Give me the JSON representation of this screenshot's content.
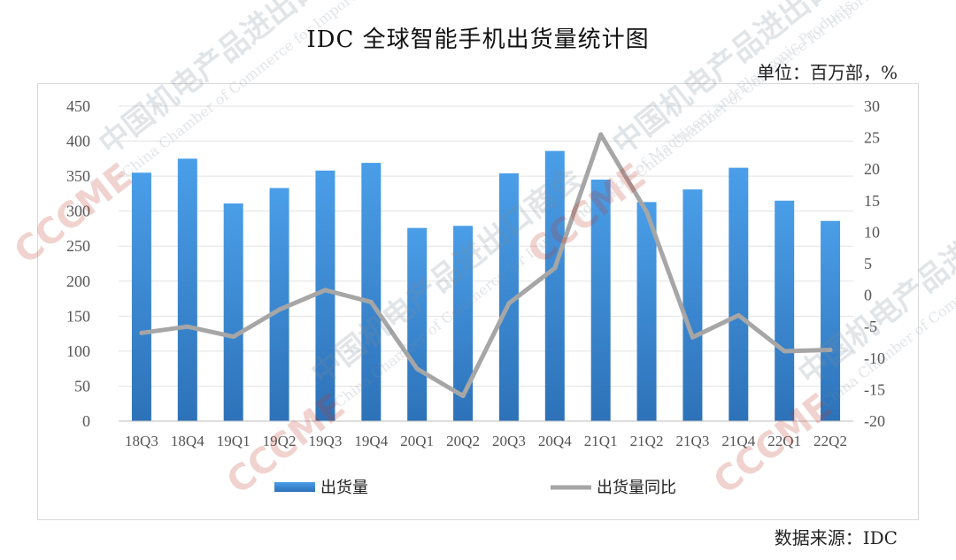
{
  "title": "IDC 全球智能手机出货量统计图",
  "unit": "单位：百万部，%",
  "source": "数据来源：IDC",
  "chart_data": {
    "type": "bar",
    "categories": [
      "18Q3",
      "18Q4",
      "19Q1",
      "19Q2",
      "19Q3",
      "19Q4",
      "20Q1",
      "20Q2",
      "20Q3",
      "20Q4",
      "21Q1",
      "21Q2",
      "21Q3",
      "21Q4",
      "22Q1",
      "22Q2"
    ],
    "series": [
      {
        "name": "出货量",
        "type": "bar",
        "axis": "left",
        "color": "#3f8ad6",
        "values": [
          355,
          375,
          311,
          333,
          358,
          369,
          276,
          279,
          354,
          386,
          345,
          313,
          331,
          362,
          315,
          286
        ]
      },
      {
        "name": "出货量同比",
        "type": "line",
        "axis": "right",
        "color": "#a6a6a6",
        "values": [
          -6,
          -5,
          -6.6,
          -2.3,
          0.8,
          -1.1,
          -11.7,
          -16,
          -1.3,
          4.3,
          25.5,
          13.2,
          -6.7,
          -3.2,
          -8.9,
          -8.7
        ]
      }
    ],
    "y_left": {
      "min": 0,
      "max": 450,
      "step": 50,
      "ticks": [
        "0",
        "50",
        "100",
        "150",
        "200",
        "250",
        "300",
        "350",
        "400",
        "450"
      ]
    },
    "y_right": {
      "min": -20,
      "max": 30,
      "step": 5,
      "ticks": [
        "-20",
        "-15",
        "-10",
        "-5",
        "0",
        "5",
        "10",
        "15",
        "20",
        "25",
        "30"
      ]
    },
    "grid": true,
    "legend_position": "bottom"
  },
  "watermark": {
    "logo_text": "CCCME",
    "org_cn": "中国机电产品进出口商会",
    "org_en": "China Chamber of Commerce for Import and Export of Machinery and Electronic Products"
  }
}
